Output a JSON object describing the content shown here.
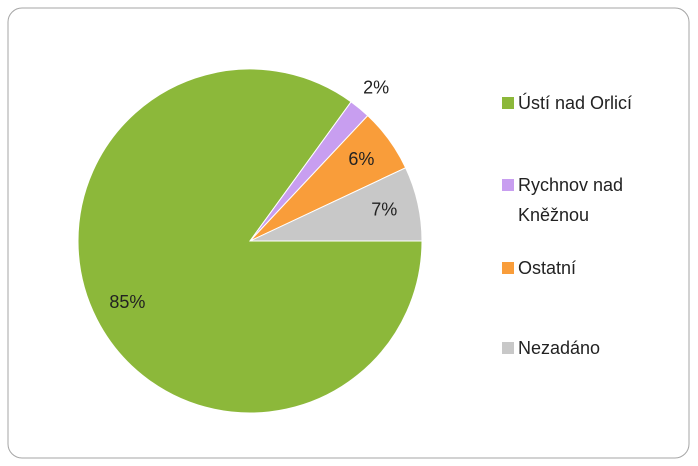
{
  "chart_data": {
    "type": "pie",
    "categories": [
      "Ústí nad Orlicí",
      "Rychnov nad Kněžnou",
      "Ostatní",
      "Nezadáno"
    ],
    "values": [
      85,
      2,
      6,
      7
    ],
    "value_labels": [
      "85%",
      "2%",
      "6%",
      "7%"
    ],
    "colors": [
      "#8cb83a",
      "#c89ef0",
      "#f99d3a",
      "#c8c8c8"
    ],
    "legend": "right"
  }
}
